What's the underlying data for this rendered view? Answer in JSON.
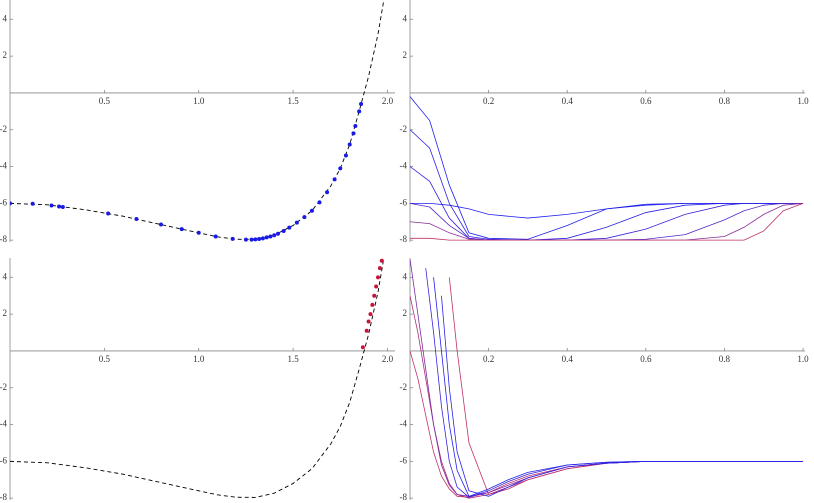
{
  "chart_data": [
    {
      "type": "scatter",
      "xlim": [
        0,
        2.04
      ],
      "ylim": [
        -8.1,
        5.05
      ],
      "xticks": [
        0.5,
        {
          "value": 1,
          "label": "1.0"
        },
        1.5,
        {
          "value": 2,
          "label": "2.0"
        }
      ],
      "yticks": [
        -8,
        -6,
        -4,
        -2,
        2,
        4
      ],
      "x": [
        0,
        0.2,
        0.4,
        0.6,
        0.8,
        1.0,
        1.1,
        1.2,
        1.3,
        1.4,
        1.5,
        1.6,
        1.7,
        1.75,
        1.8,
        1.85,
        1.9,
        1.95,
        1.98
      ],
      "series": [
        {
          "color": "#000000",
          "dashed": true,
          "values": [
            -6,
            -6.08,
            -6.35,
            -6.7,
            -7.15,
            -7.6,
            -7.82,
            -7.95,
            -7.96,
            -7.73,
            -7.2,
            -6.4,
            -5.05,
            -4.1,
            -2.8,
            -1.0,
            0.9,
            3.2,
            5.0
          ]
        }
      ],
      "points": {
        "color": "#1a1ae6",
        "x": [
          0,
          0.12,
          0.22,
          0.26,
          0.28,
          0.52,
          0.67,
          0.8,
          0.91,
          1.0,
          1.09,
          1.18,
          1.25,
          1.28,
          1.3,
          1.32,
          1.34,
          1.36,
          1.38,
          1.4,
          1.42,
          1.45,
          1.48,
          1.52,
          1.56,
          1.6,
          1.64,
          1.68,
          1.72,
          1.75,
          1.78,
          1.8,
          1.82,
          1.83,
          1.85,
          1.86
        ],
        "y": [
          -6,
          -6.02,
          -6.12,
          -6.17,
          -6.2,
          -6.55,
          -6.85,
          -7.15,
          -7.4,
          -7.6,
          -7.8,
          -7.93,
          -7.97,
          -7.97,
          -7.96,
          -7.94,
          -7.9,
          -7.85,
          -7.8,
          -7.73,
          -7.65,
          -7.5,
          -7.32,
          -7.05,
          -6.75,
          -6.4,
          -5.95,
          -5.4,
          -4.7,
          -4.1,
          -3.4,
          -2.8,
          -2.2,
          -1.8,
          -1.0,
          -0.6
        ]
      }
    },
    {
      "type": "line",
      "xlim": [
        0,
        1.005
      ],
      "ylim": [
        -8.1,
        5.05
      ],
      "xticks": [
        0.2,
        0.4,
        0.6,
        0.8,
        {
          "value": 1,
          "label": "1.0"
        }
      ],
      "yticks": [
        -8,
        -6,
        -4,
        -2,
        2,
        4
      ],
      "x": [
        0,
        0.05,
        0.1,
        0.15,
        0.2,
        0.3,
        0.4,
        0.5,
        0.6,
        0.7,
        0.8,
        0.85,
        0.9,
        0.95,
        1.0
      ],
      "series": [
        {
          "color": "#2020ee",
          "values": [
            -0.2,
            -1.5,
            -5,
            -7.6,
            -7.9,
            -7.95,
            -7.2,
            -6.3,
            -6.05,
            -6,
            -6,
            -6,
            -6,
            -6,
            -6
          ]
        },
        {
          "color": "#2a22e6",
          "values": [
            -2,
            -3,
            -6,
            -7.8,
            -7.95,
            -8,
            -7.9,
            -7.3,
            -6.5,
            -6.1,
            -6,
            -6,
            -6,
            -6,
            -6
          ]
        },
        {
          "color": "#3a24dc",
          "values": [
            -4,
            -4.8,
            -6.8,
            -7.9,
            -8,
            -8,
            -8,
            -7.9,
            -7.4,
            -6.6,
            -6.1,
            -6,
            -6,
            -6,
            -6
          ]
        },
        {
          "color": "#2020ee",
          "values": [
            -6,
            -6,
            -6.1,
            -6.3,
            -6.6,
            -6.8,
            -6.6,
            -6.3,
            -6.1,
            -6,
            -6,
            -6,
            -6,
            -6,
            -6
          ]
        },
        {
          "color": "#5426c8",
          "values": [
            -6,
            -6.2,
            -7.2,
            -7.9,
            -8,
            -8,
            -8,
            -8,
            -7.95,
            -7.7,
            -6.9,
            -6.4,
            -6.1,
            -6,
            -6
          ]
        },
        {
          "color": "#8a2a98",
          "values": [
            -7,
            -7.1,
            -7.6,
            -7.95,
            -8,
            -8,
            -8,
            -8,
            -8,
            -8,
            -7.8,
            -7.3,
            -6.6,
            -6.1,
            -6
          ]
        },
        {
          "color": "#c0306a",
          "values": [
            -7.9,
            -7.9,
            -8,
            -8,
            -8,
            -8,
            -8,
            -8,
            -8,
            -8,
            -8,
            -8,
            -7.5,
            -6.4,
            -6
          ]
        }
      ]
    },
    {
      "type": "scatter",
      "xlim": [
        0,
        2.04
      ],
      "ylim": [
        -8.1,
        5.05
      ],
      "xticks": [
        0.5,
        {
          "value": 1,
          "label": "1.0"
        },
        1.5,
        {
          "value": 2,
          "label": "2.0"
        }
      ],
      "yticks": [
        -8,
        -6,
        -4,
        -2,
        2,
        4
      ],
      "x": [
        0,
        0.2,
        0.4,
        0.6,
        0.8,
        1.0,
        1.1,
        1.2,
        1.3,
        1.4,
        1.5,
        1.6,
        1.7,
        1.75,
        1.8,
        1.85,
        1.9,
        1.95,
        1.98
      ],
      "series": [
        {
          "color": "#000000",
          "dashed": true,
          "values": [
            -6,
            -6.08,
            -6.35,
            -6.7,
            -7.15,
            -7.6,
            -7.82,
            -7.95,
            -7.96,
            -7.73,
            -7.2,
            -6.4,
            -5.05,
            -4.1,
            -2.8,
            -1.0,
            0.9,
            3.2,
            5.0
          ]
        }
      ],
      "points": {
        "color": "#c8143c",
        "x": [
          1.87,
          1.89,
          1.9,
          1.91,
          1.92,
          1.93,
          1.94,
          1.95,
          1.96,
          1.97
        ],
        "y": [
          0.2,
          1.1,
          1.6,
          2.0,
          2.5,
          3.0,
          3.5,
          4.0,
          4.5,
          4.9
        ]
      }
    },
    {
      "type": "line",
      "xlim": [
        0,
        1.005
      ],
      "ylim": [
        -8.1,
        5.05
      ],
      "xticks": [
        0.2,
        0.4,
        0.6,
        0.8,
        {
          "value": 1,
          "label": "1.0"
        }
      ],
      "yticks": [
        -8,
        -6,
        -4,
        -2,
        2,
        4
      ],
      "x": [
        0,
        0.02,
        0.04,
        0.06,
        0.08,
        0.1,
        0.12,
        0.15,
        0.2,
        0.25,
        0.3,
        0.4,
        0.5,
        0.6,
        0.8,
        1.0
      ],
      "series": [
        {
          "color": "#c0306a",
          "values": [
            0,
            -1.5,
            -3.5,
            -5.5,
            -6.8,
            -7.5,
            -7.9,
            -7.95,
            -7.7,
            -7.2,
            -6.8,
            -6.3,
            -6.1,
            -6,
            -6,
            -6
          ]
        },
        {
          "color": "#b02c78",
          "values": [
            3,
            1,
            -1.5,
            -4,
            -6,
            -7.2,
            -7.8,
            -8,
            -7.8,
            -7.4,
            -7,
            -6.4,
            -6.1,
            -6,
            -6,
            -6
          ]
        },
        {
          "color": "#c0306a",
          "values": [
            null,
            null,
            null,
            null,
            null,
            4,
            0,
            -5,
            -7.8,
            -7.5,
            -7,
            -6.4,
            -6.1,
            -6,
            -6,
            -6
          ]
        },
        {
          "color": "#7a2aa6",
          "values": [
            5,
            2,
            -1,
            -4,
            -6.2,
            -7.3,
            -7.8,
            -7.9,
            -7.7,
            -7.3,
            -6.9,
            -6.3,
            -6.1,
            -6,
            -6,
            -6
          ]
        },
        {
          "color": "#3a24dc",
          "values": [
            null,
            null,
            4.5,
            1,
            -3,
            -6,
            -7.4,
            -7.95,
            -7.6,
            -7.1,
            -6.7,
            -6.2,
            -6.05,
            -6,
            -6,
            -6
          ]
        },
        {
          "color": "#2a22e6",
          "values": [
            null,
            null,
            null,
            null,
            3,
            -2,
            -5.5,
            -7.6,
            -7.9,
            -7.4,
            -6.9,
            -6.3,
            -6.1,
            -6,
            -6,
            -6
          ]
        },
        {
          "color": "#2020ee",
          "values": [
            null,
            null,
            null,
            4,
            0,
            -4,
            -6.5,
            -7.9,
            -7.5,
            -7,
            -6.6,
            -6.2,
            -6.05,
            -6,
            -6,
            -6
          ]
        }
      ]
    }
  ]
}
